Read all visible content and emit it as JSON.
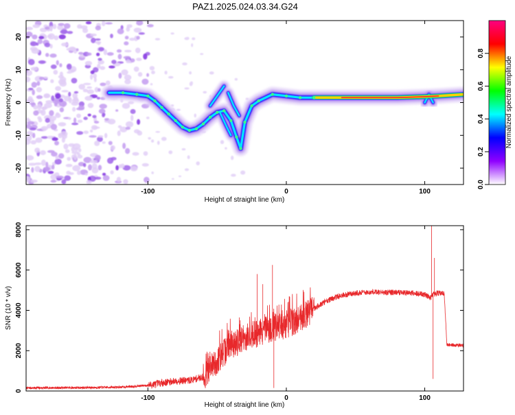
{
  "figure": {
    "title": "PAZ1.2025.024.03.34.G24"
  },
  "chart_data": [
    {
      "type": "heatmap",
      "xlabel": "Height of straight line (km)",
      "ylabel": "Frequency (Hz)",
      "xlim": [
        -188,
        128
      ],
      "ylim": [
        -25,
        25
      ],
      "xticks": [
        -100,
        0,
        100
      ],
      "yticks": [
        -20,
        -10,
        0,
        10,
        20
      ],
      "xticklabels": [
        "-100",
        "0",
        "100"
      ],
      "yticklabels": [
        "-20",
        "-10",
        "0",
        "10",
        "20"
      ],
      "colorbar": {
        "label": "Normalized spectral amplitude",
        "range": [
          0,
          1
        ],
        "ticks": [
          0.0,
          0.2,
          0.4,
          0.6,
          0.8
        ],
        "ticklabels": [
          "0.0",
          "0.2",
          "0.4",
          "0.6",
          "0.8"
        ],
        "colormap": [
          "#ffffff",
          "#8f00ff",
          "#0000ff",
          "#00ffff",
          "#00ff00",
          "#ffff00",
          "#ff0000",
          "#ff0080"
        ]
      },
      "main_track": [
        {
          "x": -128,
          "y": 3.0
        },
        {
          "x": -118,
          "y": 3.0
        },
        {
          "x": -108,
          "y": 2.5
        },
        {
          "x": -100,
          "y": 2.0
        },
        {
          "x": -95,
          "y": 0.5
        },
        {
          "x": -90,
          "y": -1.5
        },
        {
          "x": -85,
          "y": -3.5
        },
        {
          "x": -80,
          "y": -5.5
        },
        {
          "x": -75,
          "y": -7.5
        },
        {
          "x": -70,
          "y": -8.5
        },
        {
          "x": -65,
          "y": -8.0
        },
        {
          "x": -60,
          "y": -6.5
        },
        {
          "x": -55,
          "y": -4.5
        },
        {
          "x": -50,
          "y": -3.0
        },
        {
          "x": -45,
          "y": -2.5
        },
        {
          "x": -40,
          "y": -5.5
        },
        {
          "x": -36,
          "y": -10.5
        },
        {
          "x": -33,
          "y": -14.0
        },
        {
          "x": -30,
          "y": -6.0
        },
        {
          "x": -25,
          "y": -1.0
        },
        {
          "x": -20,
          "y": 0.5
        },
        {
          "x": -10,
          "y": 2.5
        },
        {
          "x": 0,
          "y": 2.0
        },
        {
          "x": 10,
          "y": 1.5
        },
        {
          "x": 20,
          "y": 1.5
        },
        {
          "x": 40,
          "y": 1.5
        },
        {
          "x": 60,
          "y": 1.5
        },
        {
          "x": 80,
          "y": 1.5
        },
        {
          "x": 100,
          "y": 1.8
        },
        {
          "x": 110,
          "y": 2.0
        },
        {
          "x": 128,
          "y": 2.5
        }
      ],
      "secondary_tracks": [
        {
          "points": [
            {
              "x": -55,
              "y": -1.0
            },
            {
              "x": -50,
              "y": 2.0
            },
            {
              "x": -45,
              "y": 5.0
            }
          ]
        },
        {
          "points": [
            {
              "x": -48,
              "y": -3.0
            },
            {
              "x": -43,
              "y": -7.5
            },
            {
              "x": -40,
              "y": -10.0
            }
          ]
        },
        {
          "points": [
            {
              "x": -42,
              "y": 3.0
            },
            {
              "x": -38,
              "y": -1.0
            },
            {
              "x": -34,
              "y": -4.0
            }
          ]
        },
        {
          "points": [
            {
              "x": 100,
              "y": 0.0
            },
            {
              "x": 103,
              "y": 2.5
            },
            {
              "x": 106,
              "y": 0.0
            }
          ]
        }
      ],
      "noise_region": [
        -188,
        -98
      ]
    },
    {
      "type": "line",
      "xlabel": "Height of straight line (km)",
      "ylabel": "SNR (10 * v/v)",
      "xlim": [
        -188,
        128
      ],
      "ylim": [
        0,
        8200
      ],
      "xticks": [
        -100,
        0,
        100
      ],
      "yticks": [
        0,
        2000,
        4000,
        6000,
        8000
      ],
      "xticklabels": [
        "-100",
        "0",
        "100"
      ],
      "yticklabels": [
        "0",
        "2000",
        "4000",
        "6000",
        "8000"
      ],
      "series": [
        {
          "color": "#e8282b",
          "points": [
            {
              "x": -188,
              "y": 150
            },
            {
              "x": -160,
              "y": 160
            },
            {
              "x": -140,
              "y": 170
            },
            {
              "x": -120,
              "y": 190
            },
            {
              "x": -100,
              "y": 280
            },
            {
              "x": -90,
              "y": 400
            },
            {
              "x": -80,
              "y": 500
            },
            {
              "x": -70,
              "y": 520
            },
            {
              "x": -60,
              "y": 700
            },
            {
              "x": -50,
              "y": 1500
            },
            {
              "x": -40,
              "y": 2300
            },
            {
              "x": -30,
              "y": 2600
            },
            {
              "x": -20,
              "y": 2900
            },
            {
              "x": -10,
              "y": 3100
            },
            {
              "x": 0,
              "y": 3300
            },
            {
              "x": 10,
              "y": 3600
            },
            {
              "x": 20,
              "y": 4100
            },
            {
              "x": 30,
              "y": 4500
            },
            {
              "x": 40,
              "y": 4750
            },
            {
              "x": 50,
              "y": 4850
            },
            {
              "x": 60,
              "y": 4900
            },
            {
              "x": 70,
              "y": 4900
            },
            {
              "x": 80,
              "y": 4880
            },
            {
              "x": 90,
              "y": 4850
            },
            {
              "x": 100,
              "y": 4800
            },
            {
              "x": 104,
              "y": 4600
            },
            {
              "x": 106,
              "y": 4800
            },
            {
              "x": 110,
              "y": 4850
            },
            {
              "x": 114,
              "y": 4850
            },
            {
              "x": 116,
              "y": 2300
            },
            {
              "x": 128,
              "y": 2250
            }
          ],
          "spikes": [
            {
              "x": -34,
              "y": 3650
            },
            {
              "x": -21,
              "y": 5800
            },
            {
              "x": -17,
              "y": 5300
            },
            {
              "x": -10,
              "y": 6250
            },
            {
              "x": -9,
              "y": 150
            },
            {
              "x": 105,
              "y": 8200
            },
            {
              "x": 106,
              "y": 600
            },
            {
              "x": 107,
              "y": 6600
            }
          ]
        }
      ]
    }
  ]
}
